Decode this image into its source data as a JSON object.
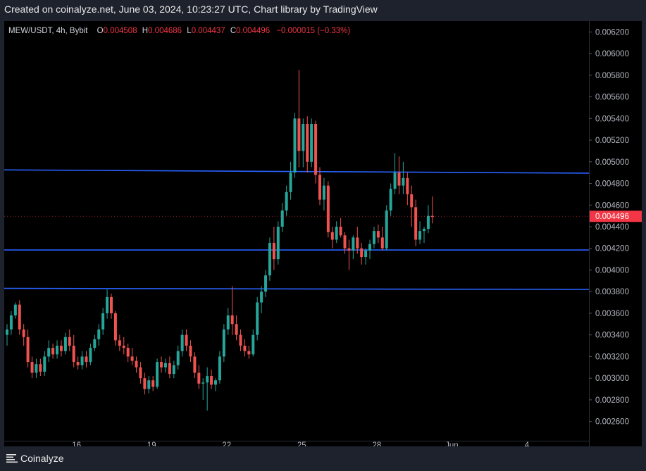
{
  "caption": "Created on coinalyze.net, June 03, 2024, 10:23:27 UTC, Chart library by TradingView",
  "legend": {
    "symbol": "MEW/USDT, 4h, Bybit",
    "o_label": "O",
    "o_value": "0.004508",
    "h_label": "H",
    "h_value": "0.004686",
    "l_label": "L",
    "l_value": "0.004437",
    "c_label": "C",
    "c_value": "0.004496",
    "change": "−0.000015 (−0.33%)"
  },
  "brand": {
    "name": "Coinalyze",
    "icon": "menu-lines-icon"
  },
  "colors": {
    "up": "#26a69a",
    "down": "#ef5350",
    "level": "#2962ff",
    "price_tag": "#f23645"
  },
  "chart_data": {
    "type": "candlestick",
    "title": "MEW/USDT, 4h, Bybit",
    "ylim": [
      0.0025,
      0.0063
    ],
    "y_ticks": [
      "0.006200",
      "0.006000",
      "0.005800",
      "0.005600",
      "0.005400",
      "0.005200",
      "0.005000",
      "0.004800",
      "0.004600",
      "0.004400",
      "0.004200",
      "0.004000",
      "0.003800",
      "0.003600",
      "0.003400",
      "0.003200",
      "0.003000",
      "0.002800",
      "0.002600"
    ],
    "x_tick_labels": [
      {
        "label": "16",
        "index": 17
      },
      {
        "label": "19",
        "index": 35
      },
      {
        "label": "22",
        "index": 53
      },
      {
        "label": "25",
        "index": 71
      },
      {
        "label": "28",
        "index": 89
      },
      {
        "label": "Jun",
        "index": 107
      },
      {
        "label": "4",
        "index": 125
      }
    ],
    "last_price": "0.004496",
    "horizontal_levels": [
      {
        "from": 0.004925,
        "to": 0.004895
      },
      {
        "from": 0.004185,
        "to": 0.004185
      },
      {
        "from": 0.00383,
        "to": 0.00382
      }
    ],
    "candles": [
      [
        0.0034,
        0.0035,
        0.0033,
        0.00345
      ],
      [
        0.00345,
        0.00362,
        0.0034,
        0.00358
      ],
      [
        0.00358,
        0.0037,
        0.00355,
        0.00368
      ],
      [
        0.00368,
        0.00372,
        0.0034,
        0.00345
      ],
      [
        0.00345,
        0.0035,
        0.0033,
        0.00338
      ],
      [
        0.00338,
        0.00345,
        0.0031,
        0.00315
      ],
      [
        0.00315,
        0.0032,
        0.003,
        0.00305
      ],
      [
        0.00305,
        0.00318,
        0.003,
        0.00313
      ],
      [
        0.00313,
        0.00318,
        0.00302,
        0.00306
      ],
      [
        0.00306,
        0.00325,
        0.00302,
        0.0032
      ],
      [
        0.0032,
        0.00335,
        0.00315,
        0.00328
      ],
      [
        0.00328,
        0.00332,
        0.00318,
        0.00322
      ],
      [
        0.00322,
        0.00335,
        0.00318,
        0.0033
      ],
      [
        0.0033,
        0.00335,
        0.0032,
        0.00325
      ],
      [
        0.00325,
        0.00342,
        0.00322,
        0.00338
      ],
      [
        0.00338,
        0.00345,
        0.00325,
        0.0033
      ],
      [
        0.0033,
        0.0034,
        0.0031,
        0.00315
      ],
      [
        0.00315,
        0.0032,
        0.00308,
        0.00312
      ],
      [
        0.00312,
        0.00325,
        0.00308,
        0.0032
      ],
      [
        0.0032,
        0.00325,
        0.0031,
        0.00315
      ],
      [
        0.00315,
        0.00332,
        0.00312,
        0.00328
      ],
      [
        0.00328,
        0.0034,
        0.00325,
        0.00336
      ],
      [
        0.00336,
        0.0035,
        0.0033,
        0.00345
      ],
      [
        0.00345,
        0.00365,
        0.0034,
        0.0036
      ],
      [
        0.0036,
        0.00382,
        0.00355,
        0.00375
      ],
      [
        0.00375,
        0.00378,
        0.00355,
        0.0036
      ],
      [
        0.0036,
        0.00362,
        0.0033,
        0.00335
      ],
      [
        0.00335,
        0.0034,
        0.00325,
        0.0033
      ],
      [
        0.0033,
        0.00338,
        0.00322,
        0.00328
      ],
      [
        0.00328,
        0.00332,
        0.00315,
        0.0032
      ],
      [
        0.0032,
        0.00328,
        0.00312,
        0.00316
      ],
      [
        0.00316,
        0.0032,
        0.00305,
        0.0031
      ],
      [
        0.0031,
        0.00315,
        0.00295,
        0.003
      ],
      [
        0.003,
        0.00305,
        0.00285,
        0.0029
      ],
      [
        0.0029,
        0.00302,
        0.00286,
        0.00298
      ],
      [
        0.00298,
        0.00302,
        0.00288,
        0.00292
      ],
      [
        0.00292,
        0.00318,
        0.0029,
        0.00315
      ],
      [
        0.00315,
        0.0032,
        0.00305,
        0.0031
      ],
      [
        0.0031,
        0.00318,
        0.00305,
        0.00314
      ],
      [
        0.00314,
        0.0032,
        0.003,
        0.00304
      ],
      [
        0.00304,
        0.00316,
        0.003,
        0.00312
      ],
      [
        0.00312,
        0.0033,
        0.00308,
        0.00325
      ],
      [
        0.00325,
        0.00345,
        0.0032,
        0.0034
      ],
      [
        0.0034,
        0.00345,
        0.00325,
        0.0033
      ],
      [
        0.0033,
        0.00335,
        0.00315,
        0.0032
      ],
      [
        0.0032,
        0.00324,
        0.003,
        0.00305
      ],
      [
        0.00305,
        0.00312,
        0.0029,
        0.00295
      ],
      [
        0.00295,
        0.003,
        0.0028,
        0.00296
      ],
      [
        0.00296,
        0.0031,
        0.0027,
        0.00302
      ],
      [
        0.00302,
        0.00308,
        0.0029,
        0.00294
      ],
      [
        0.00294,
        0.003,
        0.00288,
        0.00298
      ],
      [
        0.00298,
        0.00325,
        0.00295,
        0.0032
      ],
      [
        0.0032,
        0.0035,
        0.00315,
        0.00345
      ],
      [
        0.00345,
        0.00365,
        0.0034,
        0.00358
      ],
      [
        0.00358,
        0.00385,
        0.0034,
        0.0035
      ],
      [
        0.0035,
        0.00358,
        0.00335,
        0.0034
      ],
      [
        0.0034,
        0.00345,
        0.00325,
        0.0033
      ],
      [
        0.0033,
        0.00336,
        0.0032,
        0.00325
      ],
      [
        0.00325,
        0.0033,
        0.00318,
        0.00322
      ],
      [
        0.00322,
        0.00345,
        0.0032,
        0.0034
      ],
      [
        0.0034,
        0.00375,
        0.00335,
        0.0037
      ],
      [
        0.0037,
        0.00385,
        0.0036,
        0.0038
      ],
      [
        0.0038,
        0.004,
        0.00375,
        0.00395
      ],
      [
        0.00395,
        0.0043,
        0.0039,
        0.00425
      ],
      [
        0.00425,
        0.0044,
        0.004,
        0.0041
      ],
      [
        0.0041,
        0.00445,
        0.00405,
        0.0044
      ],
      [
        0.0044,
        0.00462,
        0.00435,
        0.00455
      ],
      [
        0.00455,
        0.00478,
        0.0045,
        0.00472
      ],
      [
        0.00472,
        0.005,
        0.00465,
        0.0049
      ],
      [
        0.0049,
        0.00545,
        0.00485,
        0.0054
      ],
      [
        0.0054,
        0.00585,
        0.00495,
        0.0051
      ],
      [
        0.0051,
        0.0054,
        0.00495,
        0.00535
      ],
      [
        0.00535,
        0.00542,
        0.0049,
        0.005
      ],
      [
        0.005,
        0.0054,
        0.00495,
        0.00535
      ],
      [
        0.00535,
        0.00538,
        0.0048,
        0.00488
      ],
      [
        0.00488,
        0.00495,
        0.0046,
        0.00465
      ],
      [
        0.00465,
        0.00485,
        0.00455,
        0.00478
      ],
      [
        0.00478,
        0.00482,
        0.0043,
        0.00435
      ],
      [
        0.00435,
        0.0044,
        0.0042,
        0.00428
      ],
      [
        0.00428,
        0.00445,
        0.00425,
        0.0044
      ],
      [
        0.0044,
        0.00448,
        0.0043,
        0.00432
      ],
      [
        0.00432,
        0.00435,
        0.00415,
        0.0042
      ],
      [
        0.0042,
        0.00428,
        0.004,
        0.00418
      ],
      [
        0.00418,
        0.00432,
        0.0041,
        0.0043
      ],
      [
        0.0043,
        0.0044,
        0.00415,
        0.0042
      ],
      [
        0.0042,
        0.00425,
        0.00405,
        0.00412
      ],
      [
        0.00412,
        0.0042,
        0.00405,
        0.00418
      ],
      [
        0.00418,
        0.00428,
        0.0041,
        0.00424
      ],
      [
        0.00424,
        0.0044,
        0.0042,
        0.00436
      ],
      [
        0.00436,
        0.00442,
        0.00425,
        0.0043
      ],
      [
        0.0043,
        0.0044,
        0.00418,
        0.0042
      ],
      [
        0.0042,
        0.0046,
        0.00418,
        0.00455
      ],
      [
        0.00455,
        0.0048,
        0.0045,
        0.00475
      ],
      [
        0.00475,
        0.00508,
        0.0047,
        0.0049
      ],
      [
        0.0049,
        0.00505,
        0.0047,
        0.00478
      ],
      [
        0.00478,
        0.005,
        0.0047,
        0.00485
      ],
      [
        0.00485,
        0.0049,
        0.0046,
        0.0047
      ],
      [
        0.0047,
        0.00478,
        0.0044,
        0.00458
      ],
      [
        0.00458,
        0.00465,
        0.00422,
        0.00428
      ],
      [
        0.00428,
        0.00445,
        0.00424,
        0.00436
      ],
      [
        0.00436,
        0.0044,
        0.00425,
        0.00438
      ],
      [
        0.00438,
        0.0046,
        0.00434,
        0.0045
      ],
      [
        0.0045,
        0.00468,
        0.00443,
        0.00449
      ]
    ]
  }
}
